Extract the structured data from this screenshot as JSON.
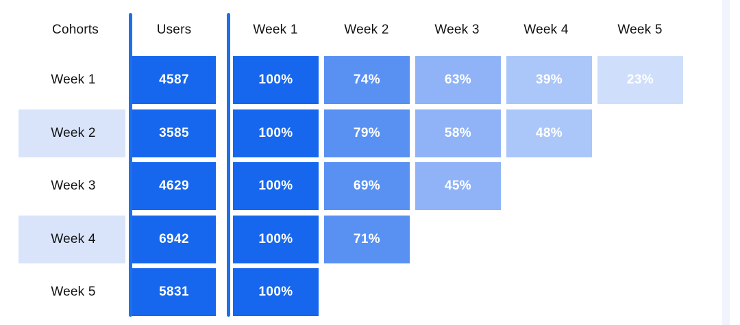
{
  "header": {
    "labels": [
      "Cohorts",
      "Users",
      "Week 1",
      "Week 2",
      "Week 3",
      "Week 4",
      "Week 5"
    ]
  },
  "rows": [
    {
      "cohort": "Week 1",
      "users": "4587",
      "retention": [
        "100%",
        "74%",
        "63%",
        "39%",
        "23%"
      ],
      "highlighted": false
    },
    {
      "cohort": "Week 2",
      "users": "3585",
      "retention": [
        "100%",
        "79%",
        "58%",
        "48%"
      ],
      "highlighted": true
    },
    {
      "cohort": "Week 3",
      "users": "4629",
      "retention": [
        "100%",
        "69%",
        "45%"
      ],
      "highlighted": false
    },
    {
      "cohort": "Week 4",
      "users": "6942",
      "retention": [
        "100%",
        "71%"
      ],
      "highlighted": true
    },
    {
      "cohort": "Week 5",
      "users": "5831",
      "retention": [
        "100%"
      ],
      "highlighted": false
    }
  ],
  "colors": {
    "users_cell": "#1667EE",
    "week_shades": [
      "#1667EE",
      "#5991F3",
      "#8FB3F6",
      "#ABC7F9",
      "#CFDFFB"
    ],
    "divider": "#1E70E8",
    "row_highlight": "#D9E4FB",
    "right_strip": "#F1F4FC",
    "cell_text": "#FFFFFF",
    "header_text": "#131313"
  },
  "chart_data": {
    "type": "heatmap",
    "title": "",
    "categories": [
      "Week 1",
      "Week 2",
      "Week 3",
      "Week 4",
      "Week 5"
    ],
    "row_label_header": "Cohorts",
    "users_column_header": "Users",
    "rows": [
      {
        "cohort": "Week 1",
        "users": 4587,
        "retention_pct": [
          100,
          74,
          63,
          39,
          23
        ]
      },
      {
        "cohort": "Week 2",
        "users": 3585,
        "retention_pct": [
          100,
          79,
          58,
          48
        ]
      },
      {
        "cohort": "Week 3",
        "users": 4629,
        "retention_pct": [
          100,
          69,
          45
        ]
      },
      {
        "cohort": "Week 4",
        "users": 6942,
        "retention_pct": [
          100,
          71
        ]
      },
      {
        "cohort": "Week 5",
        "users": 5831,
        "retention_pct": [
          100
        ]
      }
    ],
    "legend": "off",
    "grid": "off",
    "color_mapping": "shade lightens with later week column"
  }
}
